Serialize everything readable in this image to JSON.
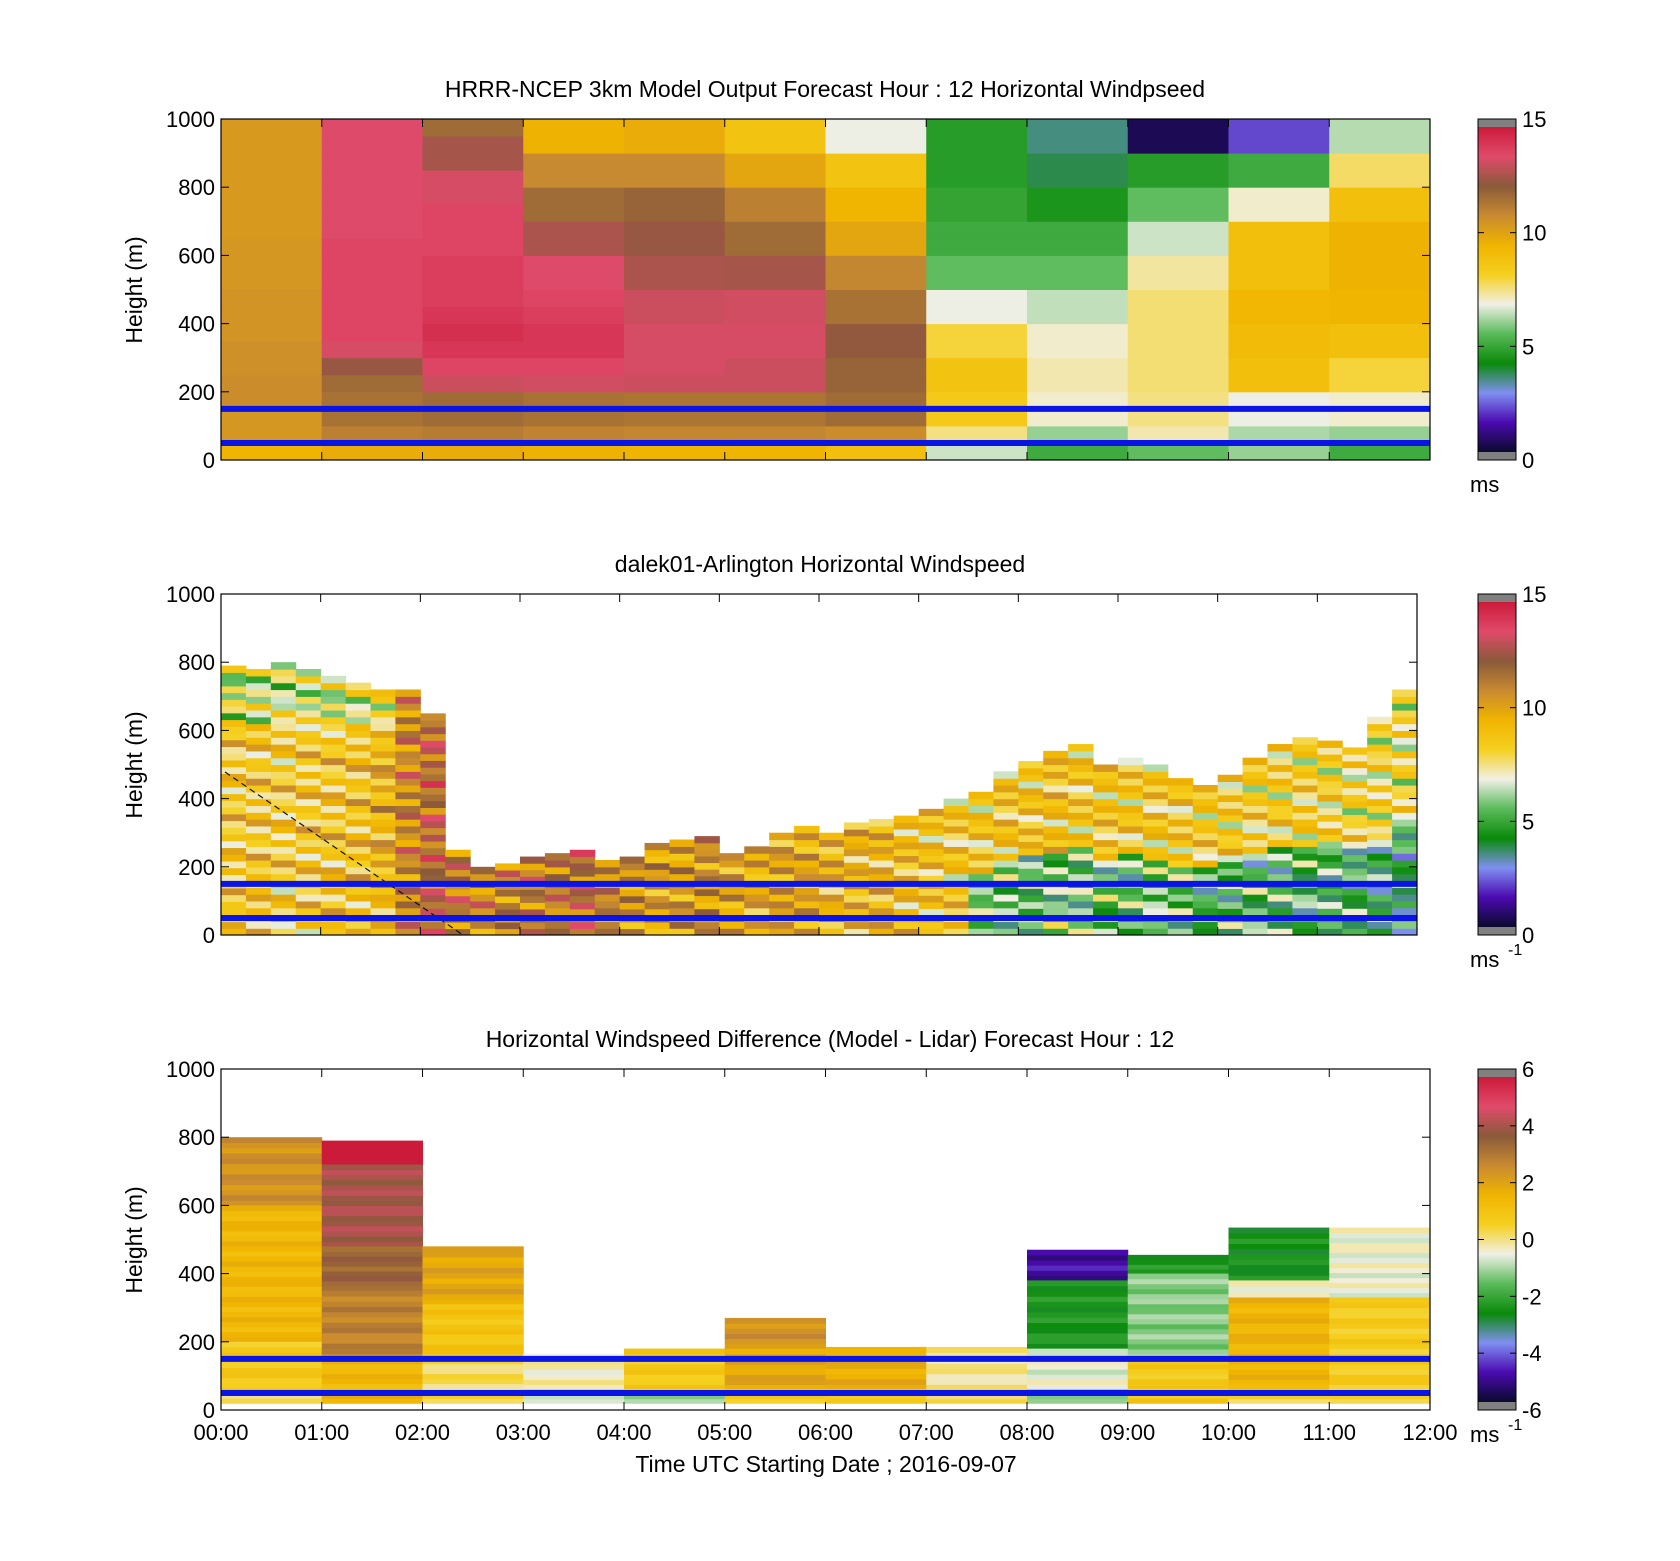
{
  "figure": {
    "xlabel": "Time UTC  Starting Date ; 2016-09-07"
  },
  "colors": {
    "boundary_line": "#0a14e6",
    "colormap": [
      "#0a0a2e",
      "#4a0ab0",
      "#7f8ff0",
      "#0a8a0a",
      "#5aba5a",
      "#f0f0e6",
      "#f5d020",
      "#f0b400",
      "#c88a30",
      "#8a5a3a",
      "#e04a6a",
      "#cc1a3a"
    ]
  },
  "panels": [
    {
      "id": "model",
      "title": "HRRR-NCEP 3km Model Output   Forecast Hour : 12 Horizontal Windpseed",
      "ylabel": "Height (m)",
      "yticks": [
        "0",
        "200",
        "400",
        "600",
        "800",
        "1000"
      ],
      "show_xticklabels": false,
      "colorbar": {
        "ticks": [
          "0",
          "5",
          "10",
          "15"
        ],
        "unit": "ms",
        "unit_sup": ""
      }
    },
    {
      "id": "lidar",
      "title": "dalek01-Arlington  Horizontal Windspeed",
      "ylabel": "Height (m)",
      "yticks": [
        "0",
        "200",
        "400",
        "600",
        "800",
        "1000"
      ],
      "show_xticklabels": false,
      "colorbar": {
        "ticks": [
          "0",
          "5",
          "10",
          "15"
        ],
        "unit": "ms",
        "unit_sup": "-1"
      }
    },
    {
      "id": "difference",
      "title": "Horizontal Windspeed Difference (Model - Lidar) Forecast Hour : 12",
      "ylabel": "Height (m)",
      "yticks": [
        "0",
        "200",
        "400",
        "600",
        "800",
        "1000"
      ],
      "show_xticklabels": true,
      "colorbar": {
        "ticks": [
          "-6",
          "-4",
          "-2",
          "0",
          "2",
          "4",
          "6"
        ],
        "unit": "ms",
        "unit_sup": "-1"
      }
    }
  ],
  "xticks": [
    "00:00",
    "01:00",
    "02:00",
    "03:00",
    "04:00",
    "05:00",
    "06:00",
    "07:00",
    "08:00",
    "09:00",
    "10:00",
    "11:00",
    "12:00"
  ],
  "chart_data": [
    {
      "type": "heatmap",
      "title": "HRRR-NCEP 3km Model Output   Forecast Hour : 12 Horizontal Windpseed",
      "ylabel": "Height (m)",
      "xlim": [
        0,
        12
      ],
      "ylim": [
        0,
        1000
      ],
      "clim": [
        0,
        15
      ],
      "x_bins_hours": [
        0,
        1,
        2,
        3,
        4,
        5,
        6,
        7,
        8,
        9,
        10,
        11,
        12
      ],
      "height_levels_m": [
        25,
        75,
        125,
        175,
        225,
        275,
        325,
        375,
        425,
        475,
        525,
        575,
        625,
        675,
        725,
        775,
        825,
        875,
        925,
        975
      ],
      "windspeed_columns": [
        [
          9.5,
          10.5,
          10.5,
          10.8,
          10.8,
          10.7,
          10.7,
          10.6,
          10.6,
          10.6,
          10.5,
          10.5,
          10.5,
          10.4,
          10.4,
          10.4,
          10.4,
          10.4,
          10.4,
          10.4
        ],
        [
          9.8,
          11.2,
          11.6,
          11.6,
          11.8,
          12.5,
          13.5,
          13.8,
          13.8,
          13.8,
          13.8,
          13.8,
          13.8,
          13.6,
          13.6,
          13.6,
          13.6,
          13.6,
          13.6,
          13.6
        ],
        [
          9.8,
          11.3,
          11.8,
          11.8,
          13.3,
          13.8,
          14.2,
          14.4,
          14.2,
          14.0,
          14.0,
          14.0,
          13.8,
          13.8,
          13.8,
          13.5,
          13.5,
          12.7,
          12.7,
          11.8
        ],
        [
          9.6,
          11.1,
          11.6,
          11.6,
          13.4,
          13.8,
          14.2,
          14.2,
          14.0,
          13.8,
          13.6,
          13.6,
          12.8,
          12.8,
          11.8,
          11.8,
          10.9,
          10.9,
          9.6,
          9.6
        ],
        [
          9.5,
          11.0,
          11.5,
          11.5,
          13.3,
          13.5,
          13.5,
          13.5,
          13.3,
          13.3,
          12.8,
          12.8,
          12.5,
          12.5,
          12.0,
          12.0,
          10.9,
          10.9,
          9.8,
          9.8
        ],
        [
          9.5,
          11.0,
          11.5,
          11.5,
          13.3,
          13.3,
          13.5,
          13.5,
          13.4,
          13.4,
          12.7,
          12.7,
          11.8,
          11.8,
          11.2,
          11.2,
          10.0,
          10.0,
          8.8,
          8.8
        ],
        [
          9.0,
          10.8,
          11.8,
          11.8,
          12.0,
          12.0,
          12.4,
          12.4,
          11.6,
          11.6,
          11.0,
          11.0,
          10.0,
          10.0,
          9.5,
          9.5,
          8.8,
          8.8,
          6.8,
          6.8
        ],
        [
          6.5,
          7.5,
          8.5,
          8.5,
          8.8,
          8.8,
          8.0,
          8.0,
          6.8,
          6.8,
          5.5,
          5.5,
          5.0,
          5.0,
          4.8,
          4.8,
          4.6,
          4.6,
          4.6,
          4.6
        ],
        [
          5.0,
          6.0,
          7.0,
          7.0,
          7.2,
          7.2,
          7.0,
          7.0,
          6.4,
          6.4,
          5.5,
          5.5,
          5.0,
          5.0,
          4.4,
          4.4,
          3.7,
          3.7,
          3.4,
          3.4
        ],
        [
          5.5,
          7.2,
          7.5,
          7.5,
          7.6,
          7.6,
          7.6,
          7.6,
          7.6,
          7.6,
          7.3,
          7.3,
          6.5,
          6.5,
          5.5,
          5.5,
          4.6,
          4.6,
          0.4,
          0.4
        ],
        [
          6.0,
          6.2,
          6.8,
          6.8,
          9.0,
          9.0,
          9.2,
          9.2,
          9.4,
          9.4,
          9.0,
          9.0,
          9.0,
          9.0,
          7.0,
          7.0,
          5.0,
          5.0,
          2.0,
          2.0
        ],
        [
          5.0,
          6.0,
          7.0,
          7.0,
          8.0,
          8.0,
          9.0,
          9.0,
          9.5,
          9.5,
          9.6,
          9.6,
          9.6,
          9.6,
          9.0,
          9.0,
          7.7,
          7.7,
          6.3,
          6.3
        ]
      ],
      "boundary_lines_m": [
        50,
        150
      ]
    },
    {
      "type": "heatmap",
      "title": "dalek01-Arlington  Horizontal Windspeed",
      "ylabel": "Height (m)",
      "xlim": [
        0,
        12
      ],
      "ylim": [
        0,
        1000
      ],
      "clim": [
        0,
        15
      ],
      "time_hours": [
        0.25,
        0.5,
        0.75,
        1.0,
        1.25,
        1.5,
        1.75,
        2.0,
        2.25,
        2.5,
        2.75,
        3.0,
        3.25,
        3.5,
        3.75,
        4.0,
        4.25,
        4.5,
        4.75,
        5.0,
        5.25,
        5.5,
        5.75,
        6.0,
        6.25,
        6.5,
        6.75,
        7.0,
        7.25,
        7.5,
        7.75,
        8.0,
        8.25,
        8.5,
        8.75,
        9.0,
        9.25,
        9.5,
        9.75,
        10.0,
        10.25,
        10.5,
        10.75,
        11.0,
        11.25,
        11.5,
        11.75,
        12.0
      ],
      "data_top_m": [
        790,
        780,
        800,
        780,
        760,
        740,
        720,
        720,
        650,
        250,
        200,
        210,
        230,
        240,
        250,
        220,
        230,
        270,
        280,
        290,
        240,
        260,
        300,
        320,
        300,
        330,
        340,
        350,
        370,
        400,
        420,
        480,
        510,
        540,
        560,
        500,
        520,
        500,
        460,
        440,
        470,
        520,
        560,
        580,
        570,
        550,
        640,
        720
      ],
      "mean_windspeed": [
        8.5,
        8.6,
        8.4,
        8.6,
        8.7,
        8.9,
        9.5,
        11.0,
        12.0,
        11.5,
        11.2,
        11.0,
        11.4,
        11.8,
        12.0,
        10.8,
        10.5,
        10.3,
        10.4,
        10.6,
        10.2,
        10.0,
        10.0,
        9.8,
        9.6,
        9.5,
        9.4,
        9.0,
        8.8,
        8.6,
        8.5,
        8.8,
        8.7,
        8.9,
        8.6,
        8.7,
        8.5,
        8.6,
        8.5,
        8.4,
        8.3,
        8.2,
        8.2,
        8.2,
        8.0,
        7.8,
        7.8,
        7.6
      ],
      "boundary_lines_m": [
        50,
        150
      ]
    },
    {
      "type": "heatmap",
      "title": "Horizontal Windspeed Difference (Model - Lidar) Forecast Hour : 12",
      "ylabel": "Height (m)",
      "xlabel": "Time UTC  Starting Date ; 2016-09-07",
      "xlim": [
        0,
        12
      ],
      "ylim": [
        0,
        1000
      ],
      "clim": [
        -6,
        6
      ],
      "x_bins_hours": [
        0,
        1,
        2,
        3,
        4,
        5,
        6,
        7,
        8,
        9,
        10,
        11,
        12
      ],
      "column_top_m": [
        795,
        790,
        480,
        165,
        180,
        270,
        185,
        185,
        470,
        455,
        535,
        535
      ],
      "difference_profile": [
        [
          {
            "top_m": 800,
            "v": 2.5
          },
          {
            "top_m": 600,
            "v": 1.5
          },
          {
            "top_m": 200,
            "v": 0.8
          },
          {
            "top_m": 50,
            "v": 0.3
          }
        ],
        [
          {
            "top_m": 790,
            "v": 6.5
          },
          {
            "top_m": 720,
            "v": 4.2
          },
          {
            "top_m": 480,
            "v": 3.6
          },
          {
            "top_m": 350,
            "v": 2.9
          },
          {
            "top_m": 150,
            "v": 1.5
          }
        ],
        [
          {
            "top_m": 480,
            "v": 2.0
          },
          {
            "top_m": 310,
            "v": 1.0
          },
          {
            "top_m": 150,
            "v": 0.2
          }
        ],
        [
          {
            "top_m": 165,
            "v": -0.3
          },
          {
            "top_m": 60,
            "v": -1.0
          }
        ],
        [
          {
            "top_m": 180,
            "v": 0.8
          },
          {
            "top_m": 60,
            "v": -1.0
          }
        ],
        [
          {
            "top_m": 270,
            "v": 2.5
          },
          {
            "top_m": 180,
            "v": 2.0
          },
          {
            "top_m": 60,
            "v": 0.5
          }
        ],
        [
          {
            "top_m": 185,
            "v": 1.8
          },
          {
            "top_m": 60,
            "v": 0.5
          }
        ],
        [
          {
            "top_m": 185,
            "v": -0.1
          },
          {
            "top_m": 60,
            "v": 0.4
          }
        ],
        [
          {
            "top_m": 470,
            "v": -5.0
          },
          {
            "top_m": 380,
            "v": -2.5
          },
          {
            "top_m": 180,
            "v": -0.6
          },
          {
            "top_m": 60,
            "v": -1.5
          }
        ],
        [
          {
            "top_m": 455,
            "v": -2.5
          },
          {
            "top_m": 400,
            "v": -1.3
          },
          {
            "top_m": 150,
            "v": 0.8
          }
        ],
        [
          {
            "top_m": 535,
            "v": -2.6
          },
          {
            "top_m": 380,
            "v": -0.3
          },
          {
            "top_m": 330,
            "v": 1.6
          },
          {
            "top_m": 60,
            "v": 0.4
          }
        ],
        [
          {
            "top_m": 535,
            "v": -0.5
          },
          {
            "top_m": 330,
            "v": 0.7
          },
          {
            "top_m": 60,
            "v": 0.3
          }
        ]
      ],
      "boundary_lines_m": [
        50,
        150
      ]
    }
  ]
}
